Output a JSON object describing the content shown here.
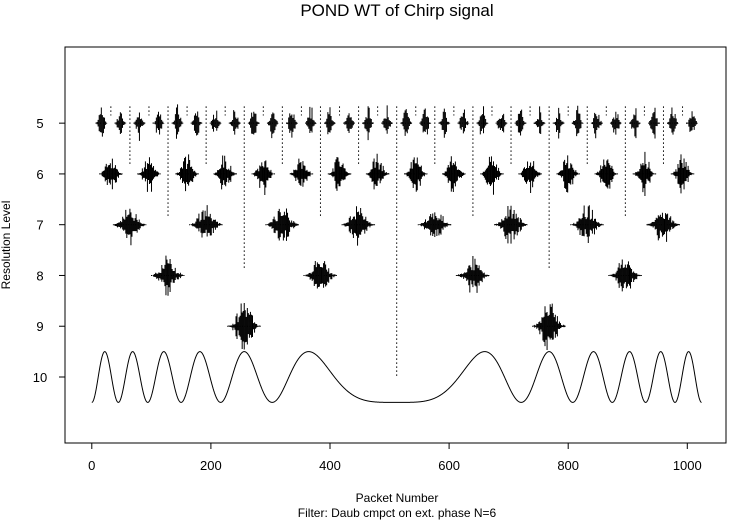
{
  "chart_data": {
    "type": "line",
    "title": "POND WT of Chirp signal",
    "xlabel": "Packet Number",
    "ylabel": "Resolution Level",
    "footnote": "Filter:  Daub cmpct on ext. phase N=6",
    "xlim": [
      -45,
      1065
    ],
    "ylim": [
      11.3,
      3.5
    ],
    "x_ticks": [
      0,
      200,
      400,
      600,
      800,
      1000
    ],
    "x_tick_labels": [
      "0",
      "200",
      "400",
      "600",
      "800",
      "1000"
    ],
    "y_ticks": [
      5,
      6,
      7,
      8,
      9,
      10
    ],
    "y_tick_labels": [
      "5",
      "6",
      "7",
      "8",
      "9",
      "10"
    ],
    "grid": false,
    "levels": [
      {
        "level": 5,
        "packets": 32,
        "packet_width": 32
      },
      {
        "level": 6,
        "packets": 16,
        "packet_width": 64
      },
      {
        "level": 7,
        "packets": 8,
        "packet_width": 128
      },
      {
        "level": 8,
        "packets": 4,
        "packet_width": 256
      },
      {
        "level": 9,
        "packets": 2,
        "packet_width": 512
      }
    ],
    "signal": {
      "name": "Chirp",
      "level": 10,
      "n": 1024,
      "center": 512,
      "amplitude": 0.5
    }
  }
}
